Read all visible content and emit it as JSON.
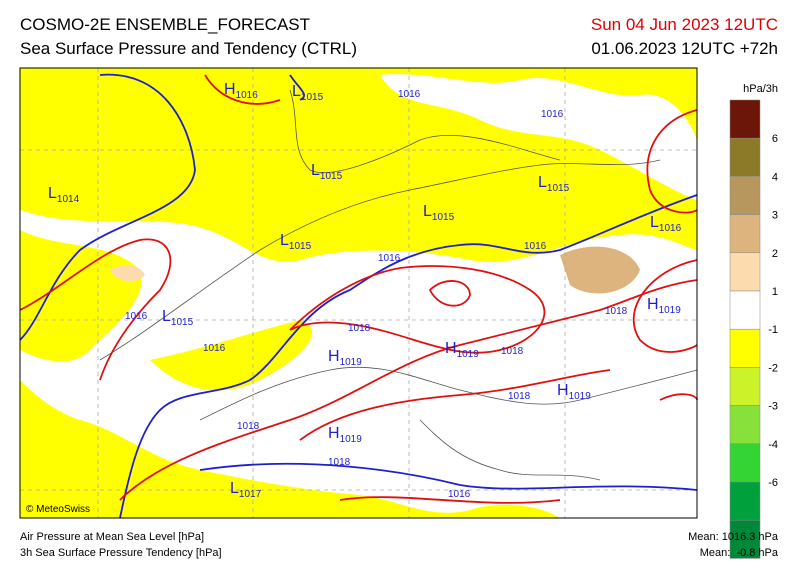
{
  "header": {
    "title": "COSMO-2E ENSEMBLE_FORECAST",
    "subtitle": "Sea Surface Pressure and Tendency (CTRL)",
    "valid": "Sun 04 Jun 2023 12UTC",
    "run": "01.06.2023 12UTC +72h"
  },
  "legend": {
    "unit": "hPa/3h",
    "labels": [
      6,
      4,
      3,
      2,
      1,
      -1,
      -2,
      -3,
      -4,
      -6
    ],
    "colors": [
      "#6b1608",
      "#8c7a28",
      "#b8975e",
      "#ddb47e",
      "#fcdcae",
      "#ffffff",
      "#ffff00",
      "#ccf22a",
      "#88e03a",
      "#33d433",
      "#00a03c",
      "#00883a"
    ]
  },
  "map": {
    "labels": [
      {
        "letter": "H",
        "value": 1016
      },
      {
        "letter": "L",
        "value": 1015
      },
      {
        "value": 1016
      },
      {
        "value": 1016
      },
      {
        "letter": "L",
        "value": 1014
      },
      {
        "letter": "L",
        "value": 1015
      },
      {
        "letter": "L",
        "value": 1015
      },
      {
        "letter": "L",
        "value": 1015
      },
      {
        "letter": "L",
        "value": 1016
      },
      {
        "letter": "L",
        "value": 1015
      },
      {
        "value": 1016
      },
      {
        "value": 1016
      },
      {
        "value": 1016
      },
      {
        "letter": "L",
        "value": 1015
      },
      {
        "value": 1016
      },
      {
        "value": 1018
      },
      {
        "letter": "H",
        "value": 1019
      },
      {
        "letter": "H",
        "value": 1019
      },
      {
        "value": 1018
      },
      {
        "value": 1018
      },
      {
        "letter": "H",
        "value": 1019
      },
      {
        "value": 1018
      },
      {
        "letter": "H",
        "value": 1019
      },
      {
        "value": 1018
      },
      {
        "letter": "H",
        "value": 1019
      },
      {
        "value": 1018
      },
      {
        "letter": "L",
        "value": 1017
      },
      {
        "value": 1016
      }
    ]
  },
  "footer": {
    "copyright": "© MeteoSwiss",
    "line1": "Air Pressure at Mean Sea Level [hPa]",
    "line2": "3h Sea Surface Pressure Tendency [hPa]",
    "mean1": "Mean: 1016.3 hPa",
    "mean2": "Mean:  -0.8 hPa"
  }
}
